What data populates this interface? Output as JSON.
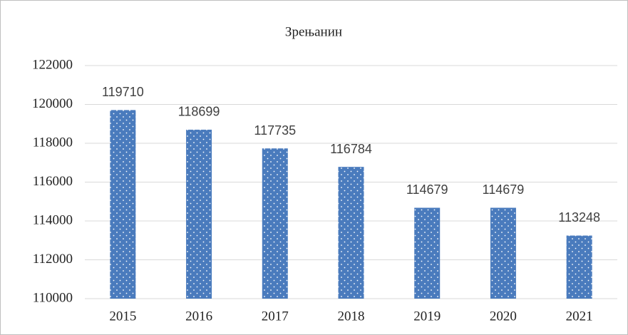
{
  "chart_data": {
    "type": "bar",
    "title": "Зрењанин",
    "categories": [
      "2015",
      "2016",
      "2017",
      "2018",
      "2019",
      "2020",
      "2021"
    ],
    "values": [
      119710,
      118699,
      117735,
      116784,
      114679,
      114679,
      113248
    ],
    "color": "#4a7bbd",
    "ylim": [
      110000,
      122000
    ],
    "yticks": [
      110000,
      112000,
      114000,
      116000,
      118000,
      120000,
      122000
    ],
    "grid": true
  }
}
